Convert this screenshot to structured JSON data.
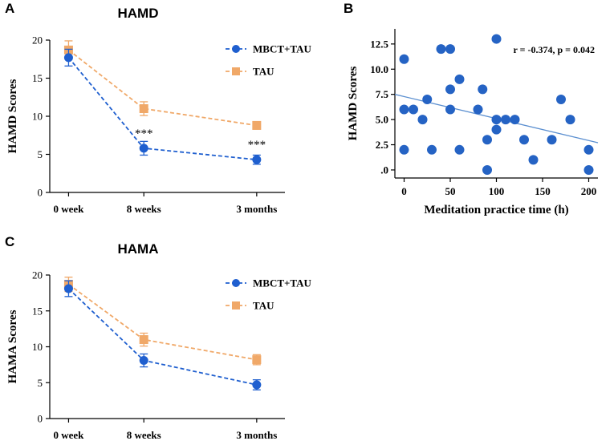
{
  "colors": {
    "mbct": "#1f5fcf",
    "tau": "#f0a868",
    "scatter": "#2563c4",
    "regression": "#5b8fd0",
    "axis": "#000000"
  },
  "panels": {
    "a": "A",
    "b": "B",
    "c": "C"
  },
  "chart_data": [
    {
      "type": "line",
      "id": "hamd",
      "title": "HAMD",
      "xlabel": "",
      "ylabel": "HAMD Scores",
      "categories": [
        "0 week",
        "8 weeks",
        "3 months"
      ],
      "x": [
        0,
        8,
        20
      ],
      "ylim": [
        0,
        20
      ],
      "yticks": [
        0,
        5,
        10,
        15,
        20
      ],
      "series": [
        {
          "name": "MBCT+TAU",
          "values": [
            17.7,
            5.8,
            4.3
          ],
          "errors": [
            1.1,
            0.9,
            0.6
          ],
          "marker": "circle"
        },
        {
          "name": "TAU",
          "values": [
            18.7,
            11.0,
            8.8
          ],
          "errors": [
            1.2,
            0.9,
            0.5
          ],
          "marker": "square"
        }
      ],
      "annotations": [
        {
          "text": "***",
          "category": "8 weeks"
        },
        {
          "text": "***",
          "category": "3 months"
        }
      ],
      "legend": "top-right"
    },
    {
      "type": "scatter",
      "id": "scatter",
      "title": "",
      "xlabel": "Meditation practice time (h)",
      "ylabel": "HAMD Scores",
      "xlim": [
        -10,
        210
      ],
      "ylim": [
        -0.8,
        14
      ],
      "xticks": [
        0,
        50,
        100,
        150,
        200
      ],
      "yticks": [
        0,
        2.5,
        5,
        7.5,
        10,
        12.5
      ],
      "ytick_labels": [
        ".0",
        "2.5",
        "5.0",
        "7.5",
        "10.0",
        "12.5"
      ],
      "points": [
        [
          0,
          11
        ],
        [
          0,
          6
        ],
        [
          0,
          2
        ],
        [
          10,
          6
        ],
        [
          20,
          5
        ],
        [
          25,
          7
        ],
        [
          30,
          2
        ],
        [
          40,
          12
        ],
        [
          50,
          12
        ],
        [
          50,
          8
        ],
        [
          50,
          6
        ],
        [
          60,
          9
        ],
        [
          60,
          2
        ],
        [
          80,
          6
        ],
        [
          85,
          8
        ],
        [
          90,
          3
        ],
        [
          90,
          0
        ],
        [
          100,
          13
        ],
        [
          100,
          5
        ],
        [
          100,
          4
        ],
        [
          110,
          5
        ],
        [
          120,
          5
        ],
        [
          130,
          3
        ],
        [
          140,
          1
        ],
        [
          160,
          3
        ],
        [
          170,
          7
        ],
        [
          180,
          5
        ],
        [
          200,
          2
        ],
        [
          200,
          0
        ]
      ],
      "regression": {
        "x": [
          -10,
          210
        ],
        "y": [
          7.5,
          2.7
        ]
      },
      "annotations": [
        {
          "text": "r = -0.374, p = 0.042"
        }
      ]
    },
    {
      "type": "line",
      "id": "hama",
      "title": "HAMA",
      "xlabel": "",
      "ylabel": "HAMA Scores",
      "categories": [
        "0 week",
        "8 weeks",
        "3 months"
      ],
      "x": [
        0,
        8,
        20
      ],
      "ylim": [
        0,
        20
      ],
      "yticks": [
        0,
        5,
        10,
        15,
        20
      ],
      "series": [
        {
          "name": "MBCT+TAU",
          "values": [
            18.1,
            8.1,
            4.7
          ],
          "errors": [
            1.1,
            0.9,
            0.7
          ],
          "marker": "circle"
        },
        {
          "name": "TAU",
          "values": [
            18.7,
            11.0,
            8.2
          ],
          "errors": [
            1.0,
            0.9,
            0.7
          ],
          "marker": "square"
        }
      ],
      "annotations": [],
      "legend": "top-right"
    }
  ]
}
